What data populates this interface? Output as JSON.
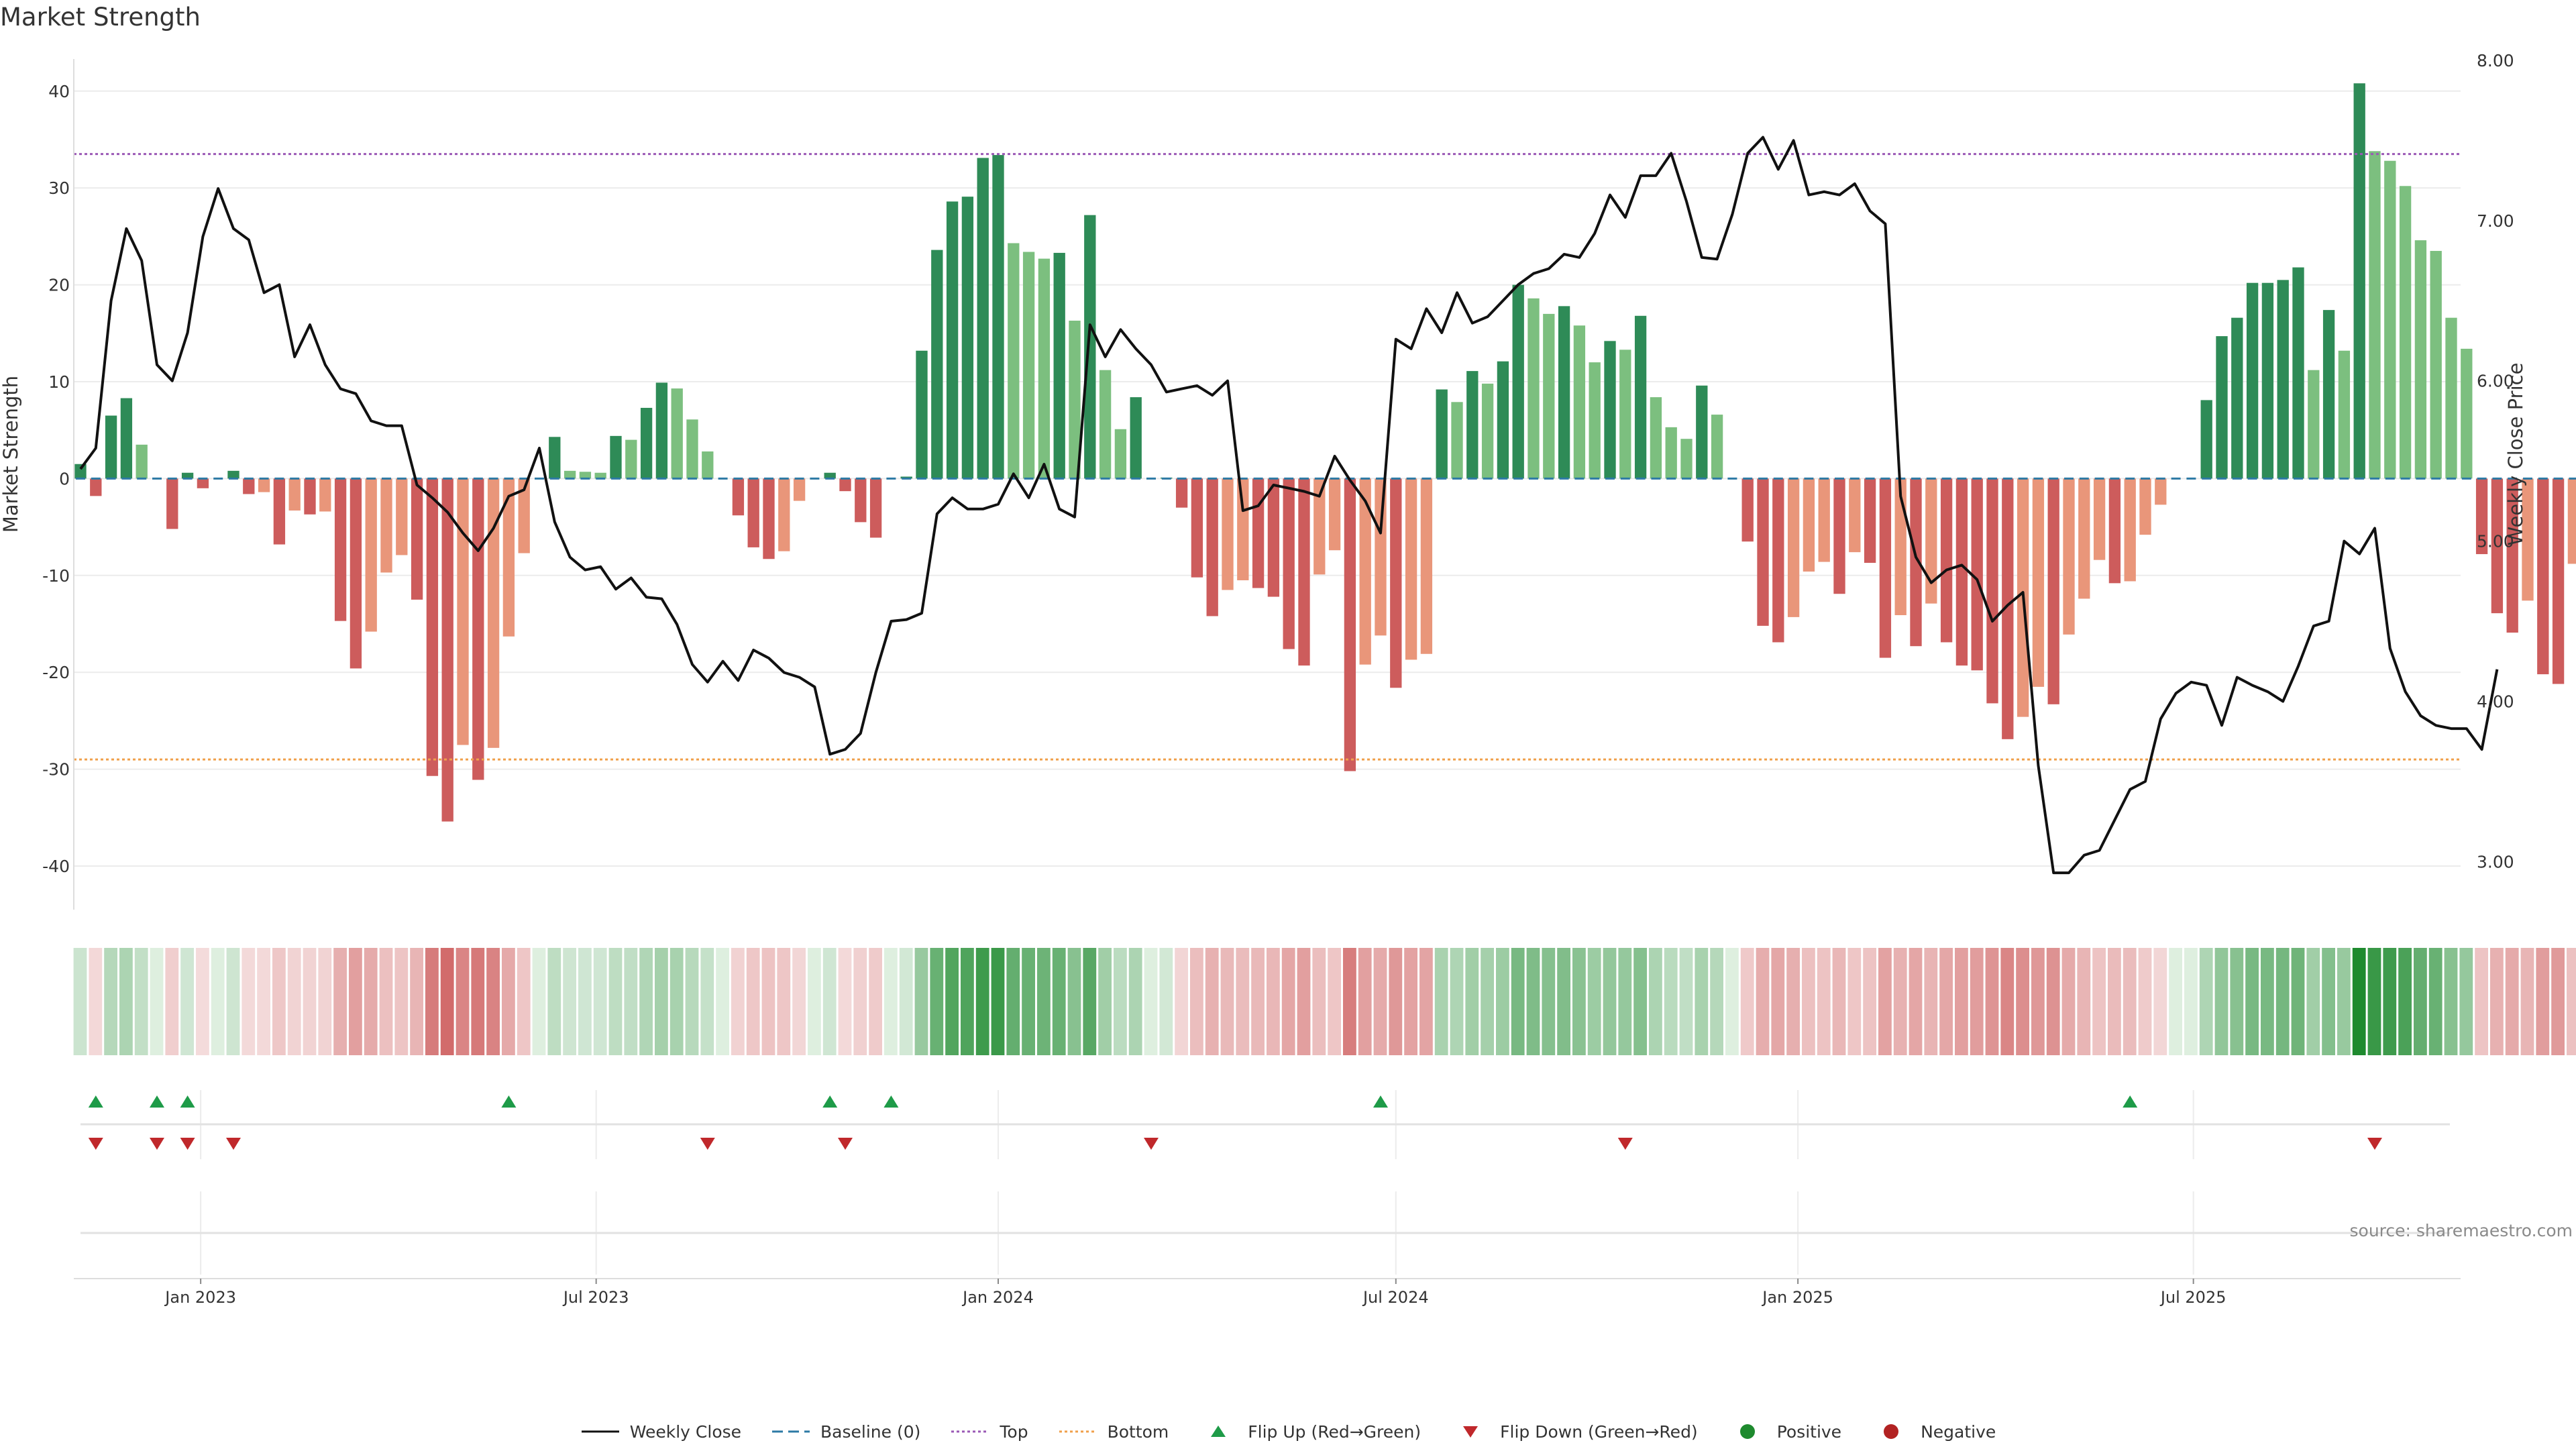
{
  "title": "Market Strength",
  "source_note": "source: sharemaestro.com",
  "colors": {
    "strong_green": "#2e8b57",
    "light_green": "#7cbf7f",
    "strong_red": "#cd5c5c",
    "light_red": "#e9967a",
    "line": "#111111",
    "top_line": "#9b59b6",
    "bottom_line": "#f0a04b",
    "baseline": "#2d7aa5",
    "flip_up": "#1e9b48",
    "flip_down": "#c0282b",
    "positive": "#1e8a2e",
    "negative": "#b22222"
  },
  "legend": [
    {
      "label": "Weekly Close",
      "kind": "line",
      "icon": "solid-line"
    },
    {
      "label": "Baseline (0)",
      "kind": "baseline",
      "icon": "dashed-line"
    },
    {
      "label": "Top",
      "kind": "top",
      "icon": "dotted-line"
    },
    {
      "label": "Bottom",
      "kind": "bottom",
      "icon": "dotted-line"
    },
    {
      "label": "Flip Up (Red→Green)",
      "kind": "flipup",
      "icon": "triangle-up-icon"
    },
    {
      "label": "Flip Down (Green→Red)",
      "kind": "flipdown",
      "icon": "triangle-down-icon"
    },
    {
      "label": "Positive",
      "kind": "positive",
      "icon": "dot-icon"
    },
    {
      "label": "Negative",
      "kind": "negative",
      "icon": "dot-icon"
    }
  ],
  "chart_data": {
    "type": "bar",
    "start_date": "2022-11-07",
    "frequency": "weekly",
    "ylabel": "Market Strength",
    "y2label": "Weekly Close Price",
    "ylim": [
      -44.5,
      44
    ],
    "y2lim": [
      2.7,
      8.05
    ],
    "yticks": [
      40,
      30,
      20,
      10,
      0,
      -10,
      -20,
      -30,
      -40
    ],
    "y2ticks": [
      "8.00",
      "7.00",
      "6.00",
      "5.00",
      "4.00",
      "3.00"
    ],
    "xticks": [
      {
        "date": "2023-01-01",
        "label": "Jan 2023"
      },
      {
        "date": "2023-07-01",
        "label": "Jul 2023"
      },
      {
        "date": "2024-01-01",
        "label": "Jan 2024"
      },
      {
        "date": "2024-07-01",
        "label": "Jul 2024"
      },
      {
        "date": "2025-01-01",
        "label": "Jan 2025"
      },
      {
        "date": "2025-07-01",
        "label": "Jul 2025"
      }
    ],
    "top_threshold": 33.5,
    "bottom_threshold": -29,
    "series": [
      {
        "name": "Market Strength",
        "values": [
          1.5,
          -1.8,
          6.5,
          8.3,
          3.5,
          0,
          -5.2,
          0.6,
          -1,
          0,
          0.8,
          -1.6,
          -1.4,
          -6.8,
          -3.3,
          -3.7,
          -3.4,
          -14.7,
          -19.6,
          -15.8,
          -9.7,
          -7.9,
          -12.5,
          -30.7,
          -35.4,
          -27.5,
          -31.1,
          -27.8,
          -16.3,
          -7.7,
          0,
          4.3,
          0.8,
          0.7,
          0.6,
          4.4,
          4,
          7.3,
          9.9,
          9.3,
          6.1,
          2.8,
          0,
          -3.8,
          -7.1,
          -8.3,
          -7.5,
          -2.3,
          0,
          0.6,
          -1.3,
          -4.5,
          -6.1,
          0,
          0.2,
          13.2,
          23.6,
          28.6,
          29.1,
          33.1,
          33.4,
          24.3,
          23.4,
          22.7,
          23.3,
          16.3,
          27.2,
          11.2,
          5.1,
          8.4,
          0,
          0.1,
          -3,
          -10.2,
          -14.2,
          -11.5,
          -10.5,
          -11.3,
          -12.2,
          -17.6,
          -19.3,
          -9.9,
          -7.4,
          -30.2,
          -19.2,
          -16.2,
          -21.6,
          -18.7,
          -18.1,
          9.2,
          7.9,
          11.1,
          9.8,
          12.1,
          20,
          18.6,
          17,
          17.8,
          15.8,
          12,
          14.2,
          13.3,
          16.8,
          8.4,
          5.3,
          4.1,
          9.6,
          6.6,
          0,
          -6.5,
          -15.2,
          -16.9,
          -14.3,
          -9.6,
          -8.6,
          -11.9,
          -7.6,
          -8.7,
          -18.5,
          -14.1,
          -17.3,
          -12.9,
          -16.9,
          -19.3,
          -19.8,
          -23.2,
          -26.9,
          -24.6,
          -21.5,
          -23.3,
          -16.1,
          -12.4,
          -8.4,
          -10.8,
          -10.6,
          -5.8,
          -2.7,
          0,
          0,
          8.1,
          14.7,
          16.6,
          20.2,
          20.2,
          20.5,
          21.8,
          11.2,
          17.4,
          13.2,
          40.8,
          33.8,
          32.8,
          30.2,
          24.6,
          23.5,
          16.6,
          13.4,
          -7.8,
          -13.9,
          -15.9,
          -12.6,
          -20.2,
          -21.2,
          -8.8
        ]
      },
      {
        "name": "Weekly Close",
        "values": [
          5.45,
          5.58,
          6.5,
          6.95,
          6.75,
          6.1,
          6.0,
          6.3,
          6.9,
          7.2,
          6.95,
          6.88,
          6.55,
          6.6,
          6.15,
          6.35,
          6.1,
          5.95,
          5.92,
          5.75,
          5.72,
          5.72,
          5.35,
          5.27,
          5.18,
          5.05,
          4.94,
          5.08,
          5.28,
          5.32,
          5.58,
          5.12,
          4.9,
          4.82,
          4.84,
          4.7,
          4.77,
          4.65,
          4.64,
          4.48,
          4.23,
          4.12,
          4.25,
          4.13,
          4.32,
          4.27,
          4.18,
          4.15,
          4.09,
          3.67,
          3.7,
          3.8,
          4.18,
          4.5,
          4.51,
          4.55,
          5.17,
          5.27,
          5.2,
          5.2,
          5.23,
          5.42,
          5.27,
          5.48,
          5.2,
          5.15,
          6.35,
          6.15,
          6.32,
          6.2,
          6.1,
          5.93,
          5.95,
          5.97,
          5.91,
          6.0,
          5.19,
          5.22,
          5.35,
          5.33,
          5.31,
          5.28,
          5.53,
          5.38,
          5.25,
          5.05,
          6.26,
          6.2,
          6.45,
          6.3,
          6.55,
          6.36,
          6.4,
          6.5,
          6.6,
          6.67,
          6.7,
          6.79,
          6.77,
          6.92,
          7.16,
          7.02,
          7.28,
          7.28,
          7.42,
          7.12,
          6.77,
          6.76,
          7.04,
          7.42,
          7.52,
          7.32,
          7.5,
          7.16,
          7.18,
          7.16,
          7.23,
          7.06,
          6.98,
          5.28,
          4.9,
          4.74,
          4.82,
          4.85,
          4.76,
          4.5,
          4.6,
          4.68,
          3.6,
          2.93,
          2.93,
          3.04,
          3.07,
          3.26,
          3.45,
          3.5,
          3.89,
          4.05,
          4.12,
          4.1,
          3.85,
          4.15,
          4.1,
          4.06,
          4.0,
          4.22,
          4.47,
          4.5,
          5.0,
          4.92,
          5.08,
          4.33,
          4.06,
          3.91,
          3.85,
          3.83,
          3.83,
          3.7,
          4.2
        ]
      }
    ],
    "flip_up_dates": [
      "2022-11-14",
      "2022-12-12",
      "2022-12-26",
      "2023-05-22",
      "2023-10-16",
      "2023-11-13",
      "2024-06-24",
      "2025-06-02"
    ],
    "flip_down_dates": [
      "2022-11-14",
      "2022-12-12",
      "2022-12-26",
      "2023-01-16",
      "2023-08-21",
      "2023-10-23",
      "2024-03-11",
      "2024-10-14",
      "2025-09-22"
    ]
  }
}
